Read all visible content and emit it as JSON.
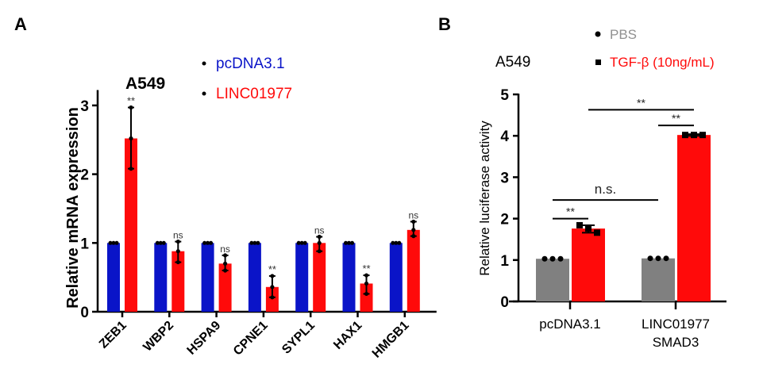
{
  "chart_data": [
    {
      "panel_label": "A",
      "type": "bar",
      "title": "A549",
      "ylabel": "Relative mRNA expression",
      "xlabel": "",
      "ylim": [
        0,
        3.2
      ],
      "yticks": [
        0,
        1,
        2,
        3
      ],
      "categories": [
        "ZEB1",
        "WBP2",
        "HSPA9",
        "CPNE1",
        "SYPL1",
        "HAX1",
        "HMGB1"
      ],
      "series": [
        {
          "name": "pcDNA3.1",
          "color": "#0a14c8",
          "values": [
            1,
            1,
            1,
            1,
            1,
            1,
            1
          ],
          "err_low": [
            1,
            1,
            1,
            1,
            1,
            1,
            1
          ],
          "err_high": [
            1,
            1,
            1,
            1,
            1,
            1,
            1
          ]
        },
        {
          "name": "LINC01977",
          "color": "#ff0a0a",
          "values": [
            2.52,
            0.88,
            0.7,
            0.36,
            1.0,
            0.41,
            1.19
          ],
          "err_low": [
            2.08,
            0.72,
            0.6,
            0.21,
            0.88,
            0.26,
            1.1
          ],
          "err_high": [
            2.97,
            1.02,
            0.82,
            0.52,
            1.09,
            0.53,
            1.31
          ]
        }
      ],
      "significance": [
        "**",
        "ns",
        "ns",
        "**",
        "ns",
        "**",
        "ns"
      ],
      "legend": "top-center"
    },
    {
      "panel_label": "B",
      "type": "bar",
      "title": "A549",
      "ylabel": "Relative  luciferase activity",
      "xlabel": "",
      "ylim": [
        0,
        5
      ],
      "yticks": [
        0,
        1,
        2,
        3,
        4,
        5
      ],
      "categories": [
        "pcDNA3.1",
        "LINC01977\nSMAD3"
      ],
      "category_lines": [
        [
          "pcDNA3.1"
        ],
        [
          "LINC01977",
          "SMAD3"
        ]
      ],
      "series": [
        {
          "name": "PBS",
          "color": "#808080",
          "marker": "circle",
          "values": [
            1.03,
            1.04
          ]
        },
        {
          "name": "TGF-β (10ng/mL)",
          "color": "#ff0a0a",
          "marker": "square",
          "values": [
            1.76,
            4.02
          ],
          "err_low": [
            1.66,
            4.0
          ],
          "err_high": [
            1.84,
            4.04
          ]
        }
      ],
      "comparisons": [
        {
          "from": [
            0,
            0
          ],
          "to": [
            0,
            1
          ],
          "y": 2.0,
          "label": "**"
        },
        {
          "from": [
            0,
            0
          ],
          "to": [
            1,
            0
          ],
          "y": 2.45,
          "label": "n.s."
        },
        {
          "from": [
            1,
            0
          ],
          "to": [
            1,
            1
          ],
          "y": 4.25,
          "label": "**"
        },
        {
          "from": [
            0,
            1
          ],
          "to": [
            1,
            1
          ],
          "y": 4.63,
          "label": "**"
        }
      ],
      "legend": "top-right"
    }
  ]
}
